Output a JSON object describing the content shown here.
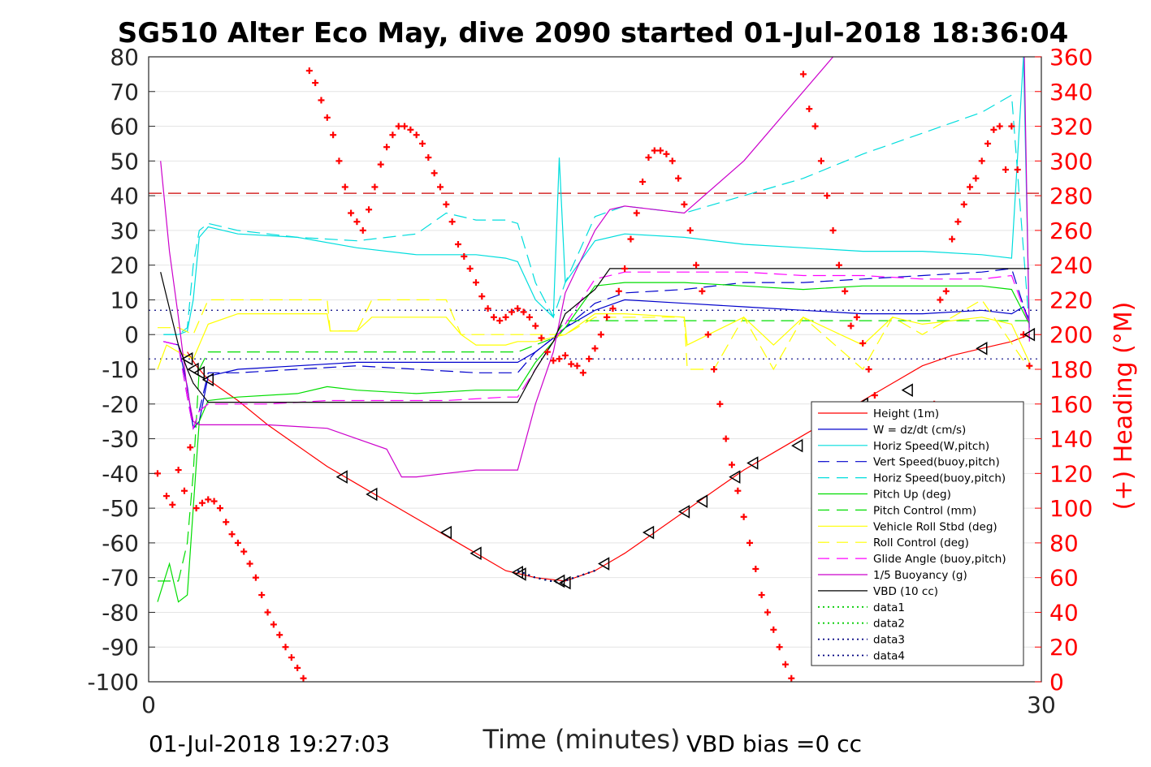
{
  "chart_data": {
    "type": "line",
    "title": "SG510 Alter Eco May, dive 2090 started 01-Jul-2018 18:36:04",
    "xlabel": "Time (minutes)",
    "ylabel_right": "(+) Heading (°M)",
    "xlim": [
      0,
      30
    ],
    "ylim": [
      -100,
      80
    ],
    "ylim_right": [
      0,
      360
    ],
    "x_ticks": [
      "0",
      "30"
    ],
    "y_ticks": [
      "-100",
      "-90",
      "-80",
      "-70",
      "-60",
      "-50",
      "-40",
      "-30",
      "-20",
      "-10",
      "0",
      "10",
      "20",
      "30",
      "40",
      "50",
      "60",
      "70",
      "80"
    ],
    "y_right_ticks": [
      "0",
      "20",
      "40",
      "60",
      "80",
      "100",
      "120",
      "140",
      "160",
      "180",
      "200",
      "220",
      "240",
      "260",
      "280",
      "300",
      "320",
      "340",
      "360"
    ],
    "grid": true,
    "legend_position": "lower-right",
    "footer_left": "01-Jul-2018 19:27:03",
    "footer_right": "VBD bias =0 cc",
    "reference_lines": [
      {
        "y": 40.7,
        "color": "#cc0000",
        "style": "dash"
      },
      {
        "y": 7,
        "color": "#000080",
        "style": "dot"
      },
      {
        "y": -7,
        "color": "#000080",
        "style": "dot"
      }
    ],
    "series": [
      {
        "name": "Height (1m)",
        "color": "#ff0000",
        "style": "solid",
        "x": [
          1.3,
          1.6,
          2.0,
          3,
          4,
          5,
          6,
          7,
          8,
          9,
          10,
          11,
          12,
          13,
          14,
          15,
          16,
          17,
          18,
          19,
          20,
          21,
          22,
          23,
          24,
          25,
          26,
          27,
          28,
          29,
          29.6
        ],
        "y": [
          -5,
          -9,
          -13,
          -19,
          -26,
          -32,
          -38,
          -43,
          -48,
          -53,
          -58,
          -63,
          -68,
          -70,
          -71,
          -68,
          -63,
          -57,
          -51,
          -45,
          -39,
          -34,
          -29,
          -24,
          -19,
          -14,
          -9,
          -6,
          -4,
          -2,
          0
        ]
      },
      {
        "name": "W = dz/dt (cm/s)",
        "color": "#0000cc",
        "style": "solid",
        "x": [
          0.5,
          1,
          1.3,
          1.5,
          1.7,
          2,
          3,
          5,
          7,
          9,
          11,
          12,
          12.4,
          13,
          13.6,
          14,
          15,
          16,
          18,
          20,
          22,
          24,
          26,
          28,
          29,
          29.4,
          29.6
        ],
        "y": [
          -2,
          -3,
          -15,
          -27,
          -25,
          -12,
          -10,
          -9,
          -8,
          -8,
          -8,
          -8,
          -8,
          -5,
          -1,
          2,
          7,
          10,
          9,
          8,
          7,
          6,
          6,
          7,
          6,
          8,
          4
        ]
      },
      {
        "name": "Horiz Speed(W,pitch)",
        "color": "#00dddd",
        "style": "solid",
        "x": [
          0.5,
          1,
          1.3,
          1.5,
          1.7,
          2,
          3,
          5,
          7,
          9,
          11,
          12,
          12.4,
          13,
          13.6,
          13.8,
          14,
          15,
          16,
          18,
          20,
          22,
          24,
          26,
          28,
          29,
          29.4,
          29.6
        ],
        "y": [
          0,
          0,
          1,
          10,
          28,
          31,
          29,
          28,
          25,
          23,
          23,
          22,
          21,
          10,
          5,
          51,
          15,
          27,
          29,
          28,
          26,
          25,
          24,
          24,
          23,
          22,
          80,
          2
        ]
      },
      {
        "name": "Vert Speed(buoy,pitch)",
        "color": "#0000cc",
        "style": "dash",
        "x": [
          0.5,
          1,
          1.3,
          1.5,
          1.7,
          2,
          3,
          5,
          7,
          9,
          11,
          12,
          12.4,
          13,
          13.6,
          14,
          15,
          16,
          18,
          20,
          22,
          24,
          26,
          28,
          29,
          29.6
        ],
        "y": [
          -2,
          -3,
          -18,
          -27,
          -22,
          -11,
          -11,
          -10,
          -9,
          -10,
          -11,
          -11,
          -11,
          -5,
          -1,
          2,
          9,
          12,
          13,
          15,
          15,
          16,
          17,
          18,
          19,
          3
        ]
      },
      {
        "name": "Horiz Speed(buoy,pitch)",
        "color": "#00dddd",
        "style": "dash",
        "x": [
          0.5,
          1,
          1.3,
          1.5,
          1.7,
          2,
          3,
          5,
          7,
          9,
          10,
          11,
          12,
          12.4,
          13,
          13.6,
          14,
          15,
          16,
          18,
          20,
          22,
          24,
          26,
          28,
          29,
          29.6
        ],
        "y": [
          0,
          0,
          2,
          20,
          30,
          32,
          30,
          28,
          27,
          29,
          35,
          33,
          33,
          32,
          15,
          5,
          15,
          34,
          37,
          35,
          40,
          45,
          52,
          58,
          64,
          69,
          2
        ]
      },
      {
        "name": "Pitch Up (deg)",
        "color": "#00dd00",
        "style": "solid",
        "x": [
          0.3,
          0.7,
          1,
          1.3,
          1.5,
          1.7,
          2,
          3,
          5,
          6,
          7,
          9,
          11,
          12,
          12.4,
          13,
          13.6,
          14,
          15,
          16,
          18,
          20,
          22,
          24,
          26,
          28,
          29,
          29.6
        ],
        "y": [
          -77,
          -66,
          -77,
          -75,
          -50,
          -25,
          -19,
          -18,
          -17,
          -15,
          -16,
          -17,
          -16,
          -16,
          -16,
          -8,
          -2,
          2,
          14,
          15,
          15,
          14,
          13,
          14,
          14,
          14,
          13,
          3
        ]
      },
      {
        "name": "Pitch Control (mm)",
        "color": "#00dd00",
        "style": "dash",
        "x": [
          0.3,
          1,
          1.3,
          1.5,
          1.7,
          2,
          4,
          8,
          12,
          12.4,
          13,
          13.6,
          14,
          16,
          20,
          24,
          28,
          29.6
        ],
        "y": [
          -71,
          -71,
          -60,
          -40,
          -10,
          -5,
          -5,
          -5,
          -5,
          -5,
          -3,
          -1,
          4,
          4,
          4,
          4,
          4,
          4
        ]
      },
      {
        "name": "Vehicle Roll Stbd (deg)",
        "color": "#ffff00",
        "style": "solid",
        "x": [
          0.3,
          0.6,
          1,
          1.5,
          2,
          3,
          6,
          6.1,
          7,
          7.5,
          9,
          10,
          10.5,
          11,
          12,
          12.4,
          13,
          14,
          15,
          16,
          18,
          18.1,
          20,
          21,
          22,
          24,
          25,
          26,
          28,
          29,
          29.6
        ],
        "y": [
          -10,
          -3,
          -5,
          -7,
          3,
          6,
          6,
          1,
          1,
          5,
          5,
          5,
          0,
          -3,
          -3,
          -2,
          -2,
          0,
          6,
          6,
          5,
          -3,
          5,
          -3,
          5,
          -3,
          5,
          3,
          5,
          3,
          -8
        ]
      },
      {
        "name": "Roll Control (deg)",
        "color": "#ffff00",
        "style": "dash",
        "x": [
          0.3,
          1,
          1.5,
          2,
          4,
          6,
          6.1,
          7,
          7.5,
          9,
          10,
          10.5,
          12,
          13,
          14,
          15,
          16,
          18,
          18.1,
          19,
          20,
          21,
          22,
          24,
          25,
          26,
          28,
          29.6
        ],
        "y": [
          2,
          2,
          0,
          10,
          10,
          10,
          1,
          1,
          10,
          10,
          10,
          0,
          0,
          0,
          0,
          5,
          5,
          5,
          -10,
          -10,
          5,
          -10,
          5,
          -10,
          5,
          0,
          10,
          -10
        ]
      },
      {
        "name": "Glide Angle (buoy,pitch)",
        "color": "#ff00ff",
        "style": "dash",
        "x": [
          0.5,
          1,
          1.3,
          1.5,
          1.7,
          2,
          4,
          6,
          8,
          10,
          12,
          12.4,
          13,
          13.6,
          14,
          15,
          16,
          18,
          20,
          22,
          24,
          26,
          28,
          29,
          29.6
        ],
        "y": [
          -2,
          -3,
          -18,
          -27,
          -22,
          -20,
          -20,
          -19,
          -19,
          -19,
          -18,
          -18,
          -10,
          -2,
          3,
          16,
          18,
          18,
          18,
          17,
          17,
          16,
          16,
          17,
          3
        ]
      },
      {
        "name": "1/5 Buoyancy (g)",
        "color": "#cc00cc",
        "style": "solid",
        "x": [
          0.4,
          0.7,
          1,
          1.3,
          1.5,
          1.7,
          2,
          4,
          6,
          7,
          8,
          8.5,
          9,
          10,
          11,
          12,
          12.4,
          13,
          13.6,
          14,
          15,
          15.5,
          16,
          17,
          18,
          20,
          23,
          26,
          29.3,
          29.6
        ],
        "y": [
          50,
          24,
          5,
          -16,
          -25,
          -26,
          -26,
          -26,
          -27,
          -30,
          -33,
          -41,
          -41,
          -40,
          -39,
          -39,
          -39,
          -20,
          -5,
          12,
          30,
          36,
          37,
          36,
          35,
          50,
          80,
          110,
          140,
          -2
        ]
      },
      {
        "name": "VBD (10 cc)",
        "color": "#000000",
        "style": "solid",
        "x": [
          0.4,
          1,
          1.3,
          1.5,
          2,
          12,
          12.4,
          13,
          13.6,
          14,
          15,
          15.5,
          16,
          18,
          20,
          23,
          26,
          29.6
        ],
        "y": [
          18,
          -3,
          -10,
          -14,
          -19.5,
          -19.5,
          -19.5,
          -10,
          -2,
          6,
          13,
          19,
          19,
          19,
          19,
          19,
          19,
          19
        ]
      },
      {
        "name": "data1",
        "color": "#00cc00",
        "style": "dot",
        "x": [
          12.4,
          13,
          13.8,
          14.3,
          15
        ],
        "y": [
          -68,
          -70,
          -71.5,
          -70,
          -68
        ]
      },
      {
        "name": "data2",
        "color": "#00cc00",
        "style": "dot",
        "x": [
          12.4,
          13,
          13.8,
          14.3,
          15
        ],
        "y": [
          -68,
          -70,
          -71.5,
          -70,
          -68
        ]
      },
      {
        "name": "data3",
        "color": "#000080",
        "style": "dot",
        "x": [
          12.4,
          13,
          13.8,
          14.3,
          15
        ],
        "y": [
          -68,
          -70,
          -71.5,
          -70,
          -68
        ]
      },
      {
        "name": "data4",
        "color": "#000080",
        "style": "dot",
        "x": [
          12.4,
          13,
          13.8,
          14.3,
          15
        ],
        "y": [
          -68,
          -70,
          -71.5,
          -70,
          -68
        ]
      }
    ],
    "triangle_markers": {
      "x": [
        1.3,
        1.5,
        1.7,
        2,
        6.5,
        7.5,
        10,
        11,
        12.4,
        12.5,
        13.8,
        14,
        15.3,
        16.8,
        18,
        18.6,
        19.7,
        20.3,
        21.8,
        24,
        25.5,
        28,
        29.6
      ],
      "y": [
        -7,
        -10,
        -11,
        -13,
        -41,
        -46,
        -57,
        -63,
        -68.5,
        -69,
        -71,
        -71.5,
        -66,
        -57,
        -51,
        -48,
        -41,
        -37,
        -32,
        -20,
        -16,
        -4,
        0
      ]
    },
    "heading": {
      "name": "Heading",
      "color": "#ff0000",
      "x": [
        0.3,
        0.6,
        0.8,
        1.0,
        1.2,
        1.4,
        1.6,
        1.8,
        2.0,
        2.2,
        2.4,
        2.6,
        2.8,
        3.0,
        3.2,
        3.4,
        3.6,
        3.8,
        4.0,
        4.2,
        4.4,
        4.6,
        4.8,
        5.0,
        5.2,
        5.4,
        5.6,
        5.8,
        6.0,
        6.2,
        6.4,
        6.6,
        6.8,
        7.0,
        7.2,
        7.4,
        7.6,
        7.8,
        8.0,
        8.2,
        8.4,
        8.6,
        8.8,
        9.0,
        9.2,
        9.4,
        9.6,
        9.8,
        10.0,
        10.2,
        10.4,
        10.6,
        10.8,
        11.0,
        11.2,
        11.4,
        11.6,
        11.8,
        12.0,
        12.2,
        12.4,
        12.6,
        12.8,
        13.0,
        13.2,
        13.4,
        13.6,
        13.8,
        14.0,
        14.2,
        14.4,
        14.6,
        14.8,
        15.0,
        15.2,
        15.4,
        15.6,
        15.8,
        16.0,
        16.2,
        16.4,
        16.6,
        16.8,
        17.0,
        17.2,
        17.4,
        17.6,
        17.8,
        18.0,
        18.2,
        18.4,
        18.6,
        18.8,
        19.0,
        19.2,
        19.4,
        19.6,
        19.8,
        20.0,
        20.2,
        20.4,
        20.6,
        20.8,
        21.0,
        21.2,
        21.4,
        21.6,
        21.8,
        22.0,
        22.2,
        22.4,
        22.6,
        22.8,
        23.0,
        23.2,
        23.4,
        23.6,
        23.8,
        24.0,
        24.2,
        24.4,
        24.6,
        24.8,
        25.0,
        25.2,
        25.4,
        25.6,
        25.8,
        26.0,
        26.2,
        26.4,
        26.6,
        26.8,
        27.0,
        27.2,
        27.4,
        27.6,
        27.8,
        28.0,
        28.2,
        28.4,
        28.6,
        28.8,
        29.0,
        29.2,
        29.4,
        29.6
      ],
      "y": [
        120,
        107,
        102,
        122,
        110,
        135,
        100,
        103,
        105,
        104,
        100,
        92,
        85,
        80,
        75,
        68,
        60,
        50,
        40,
        33,
        27,
        20,
        14,
        8,
        2,
        352,
        345,
        335,
        325,
        315,
        300,
        285,
        270,
        265,
        260,
        272,
        285,
        298,
        308,
        315,
        320,
        320,
        318,
        315,
        310,
        302,
        293,
        285,
        275,
        265,
        252,
        245,
        238,
        230,
        222,
        215,
        210,
        208,
        210,
        213,
        215,
        213,
        210,
        205,
        198,
        190,
        185,
        186,
        188,
        183,
        182,
        178,
        186,
        192,
        200,
        210,
        215,
        225,
        238,
        255,
        270,
        288,
        302,
        306,
        306,
        304,
        300,
        290,
        275,
        260,
        240,
        225,
        200,
        180,
        160,
        140,
        125,
        110,
        95,
        80,
        65,
        50,
        40,
        30,
        20,
        10,
        2,
        370,
        350,
        330,
        320,
        300,
        280,
        260,
        240,
        225,
        205,
        210,
        195,
        180,
        165,
        150,
        140,
        120,
        110,
        100,
        95,
        90,
        85,
        150,
        160,
        220,
        225,
        255,
        265,
        275,
        285,
        290,
        300,
        310,
        318,
        320,
        295,
        320,
        295,
        200,
        182
      ]
    }
  },
  "legend": [
    {
      "label": "Height (1m)",
      "color": "#ff0000",
      "style": "solid"
    },
    {
      "label": "W = dz/dt (cm/s)",
      "color": "#0000cc",
      "style": "solid"
    },
    {
      "label": "Horiz Speed(W,pitch)",
      "color": "#00dddd",
      "style": "solid"
    },
    {
      "label": "Vert Speed(buoy,pitch)",
      "color": "#0000cc",
      "style": "dash"
    },
    {
      "label": "Horiz Speed(buoy,pitch)",
      "color": "#00dddd",
      "style": "dash"
    },
    {
      "label": "Pitch Up (deg)",
      "color": "#00dd00",
      "style": "solid"
    },
    {
      "label": "Pitch Control (mm)",
      "color": "#00dd00",
      "style": "dash"
    },
    {
      "label": "Vehicle Roll Stbd (deg)",
      "color": "#ffff00",
      "style": "solid"
    },
    {
      "label": "Roll Control (deg)",
      "color": "#ffff00",
      "style": "dash"
    },
    {
      "label": "Glide Angle (buoy,pitch)",
      "color": "#ff00ff",
      "style": "dash"
    },
    {
      "label": "1/5 Buoyancy (g)",
      "color": "#cc00cc",
      "style": "solid"
    },
    {
      "label": "VBD (10 cc)",
      "color": "#000000",
      "style": "solid"
    },
    {
      "label": "data1",
      "color": "#00cc00",
      "style": "dot"
    },
    {
      "label": "data2",
      "color": "#00cc00",
      "style": "dot"
    },
    {
      "label": "data3",
      "color": "#000080",
      "style": "dot"
    },
    {
      "label": "data4",
      "color": "#000080",
      "style": "dot"
    }
  ]
}
